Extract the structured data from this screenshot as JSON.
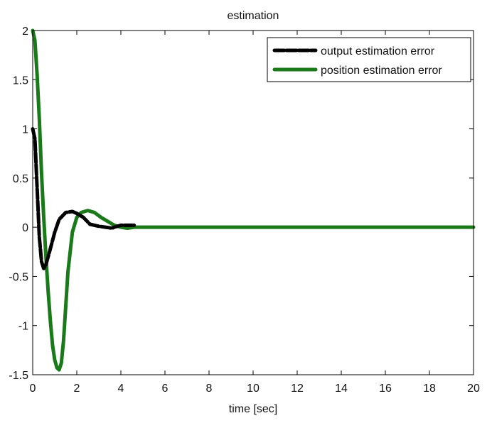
{
  "chart_data": {
    "type": "line",
    "title": "estimation",
    "xlabel": "time [sec]",
    "ylabel": "",
    "xlim": [
      0,
      20
    ],
    "ylim": [
      -1.5,
      2
    ],
    "xticks": [
      0,
      2,
      4,
      6,
      8,
      10,
      12,
      14,
      16,
      18,
      20
    ],
    "yticks": [
      -1.5,
      -1,
      -0.5,
      0,
      0.5,
      1,
      1.5,
      2
    ],
    "xtick_labels": [
      "0",
      "2",
      "4",
      "6",
      "8",
      "10",
      "12",
      "14",
      "16",
      "18",
      "20"
    ],
    "ytick_labels": [
      "-1.5",
      "-1",
      "-0.5",
      "0",
      "0.5",
      "1",
      "1.5",
      "2"
    ],
    "grid": false,
    "legend_position": "top-right",
    "series": [
      {
        "name": "output estimation error",
        "color": "#000000",
        "style": "dashed",
        "x": [
          0,
          0.1,
          0.2,
          0.3,
          0.4,
          0.5,
          0.6,
          0.8,
          1.0,
          1.2,
          1.5,
          1.8,
          2.0,
          2.3,
          2.6,
          3.0,
          3.3,
          3.6,
          3.7,
          4.0,
          4.3,
          4.6
        ],
        "y": [
          1.0,
          0.9,
          0.4,
          -0.1,
          -0.35,
          -0.42,
          -0.38,
          -0.22,
          -0.05,
          0.08,
          0.15,
          0.16,
          0.14,
          0.1,
          0.03,
          0.01,
          0.0,
          -0.01,
          0.0,
          0.02,
          0.02,
          0.02
        ]
      },
      {
        "name": "position estimation error",
        "color": "#1a7a1a",
        "style": "solid",
        "x": [
          0,
          0.1,
          0.2,
          0.3,
          0.4,
          0.5,
          0.6,
          0.7,
          0.8,
          0.9,
          1.0,
          1.1,
          1.2,
          1.3,
          1.4,
          1.5,
          1.6,
          1.8,
          2.0,
          2.2,
          2.5,
          2.8,
          3.1,
          3.4,
          3.7,
          4.0,
          4.3,
          4.6,
          5,
          6,
          8,
          10,
          12,
          14,
          16,
          18,
          20
        ],
        "y": [
          2.0,
          1.9,
          1.55,
          1.1,
          0.55,
          0.1,
          -0.3,
          -0.65,
          -0.95,
          -1.2,
          -1.35,
          -1.43,
          -1.45,
          -1.38,
          -1.15,
          -0.8,
          -0.45,
          -0.05,
          0.1,
          0.15,
          0.17,
          0.15,
          0.1,
          0.06,
          0.02,
          0.0,
          -0.01,
          0.0,
          0,
          0,
          0,
          0,
          0,
          0,
          0,
          0,
          0
        ]
      }
    ]
  }
}
